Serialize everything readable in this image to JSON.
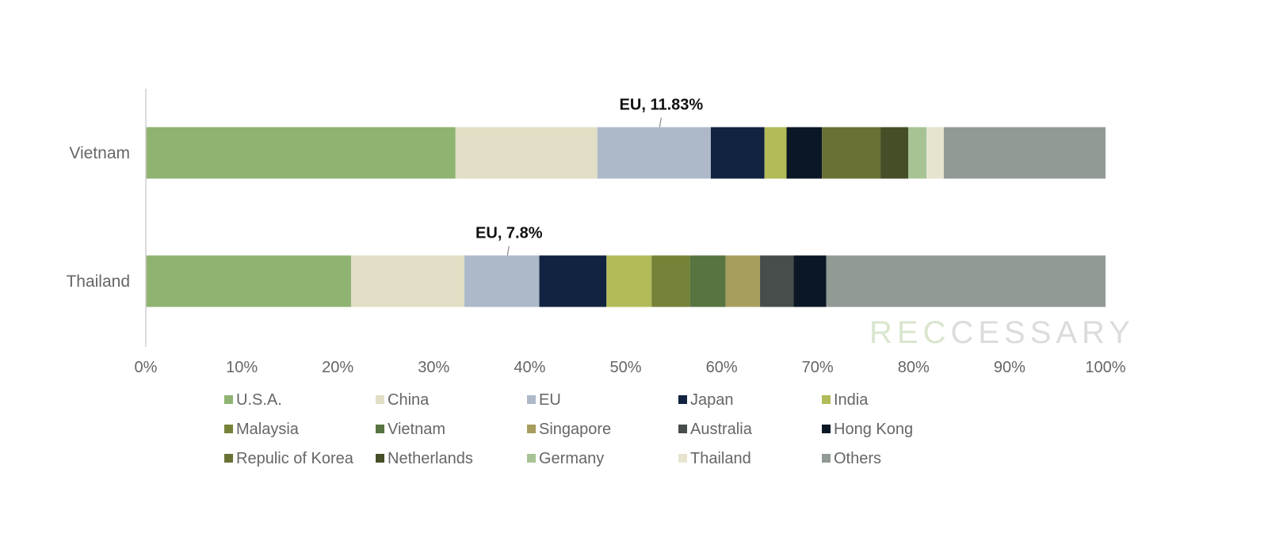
{
  "chart_data": {
    "type": "bar",
    "orientation": "horizontal",
    "stacked": "percent",
    "categories": [
      "Vietnam",
      "Thailand"
    ],
    "xlim": [
      0,
      100
    ],
    "x_ticks": [
      "0%",
      "10%",
      "20%",
      "30%",
      "40%",
      "50%",
      "60%",
      "70%",
      "80%",
      "90%",
      "100%"
    ],
    "grid": false,
    "legend_position": "bottom",
    "series": [
      {
        "name": "U.S.A.",
        "color": "#8fb371",
        "values": [
          32.3,
          21.4
        ]
      },
      {
        "name": "China",
        "color": "#e1dec5",
        "values": [
          14.8,
          11.8
        ]
      },
      {
        "name": "EU",
        "color": "#adb9c9",
        "values": [
          11.83,
          7.8
        ]
      },
      {
        "name": "Japan",
        "color": "#112340",
        "values": [
          5.6,
          7.0
        ]
      },
      {
        "name": "India",
        "color": "#b2bb57",
        "values": [
          2.3,
          4.7
        ]
      },
      {
        "name": "Malaysia",
        "color": "#768237",
        "values": [
          0,
          4.0
        ]
      },
      {
        "name": "Vietnam",
        "color": "#587441",
        "values": [
          0,
          3.7
        ]
      },
      {
        "name": "Singapore",
        "color": "#a79e5e",
        "values": [
          0,
          3.6
        ]
      },
      {
        "name": "Australia",
        "color": "#474d4a",
        "values": [
          0,
          3.5
        ]
      },
      {
        "name": "Hong Kong",
        "color": "#0c1726",
        "values": [
          3.7,
          3.4
        ]
      },
      {
        "name": "Repulic of Korea",
        "color": "#6a7135",
        "values": [
          6.1,
          0
        ]
      },
      {
        "name": "Netherlands",
        "color": "#454e26",
        "values": [
          2.9,
          0
        ]
      },
      {
        "name": "Germany",
        "color": "#a7c394",
        "values": [
          1.9,
          0
        ]
      },
      {
        "name": "Thailand",
        "color": "#e6e4cf",
        "values": [
          1.8,
          0
        ]
      },
      {
        "name": "Others",
        "color": "#919a94",
        "values": [
          16.87,
          29.1
        ]
      }
    ],
    "annotations": [
      {
        "category": "Vietnam",
        "series": "EU",
        "text": "EU, 11.83%"
      },
      {
        "category": "Thailand",
        "series": "EU",
        "text": "EU, 7.8%"
      }
    ],
    "watermark": "RECCESSARY"
  }
}
